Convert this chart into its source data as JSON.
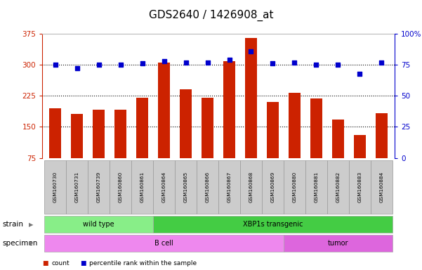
{
  "title": "GDS2640 / 1426908_at",
  "samples": [
    "GSM160730",
    "GSM160731",
    "GSM160739",
    "GSM160860",
    "GSM160861",
    "GSM160864",
    "GSM160865",
    "GSM160866",
    "GSM160867",
    "GSM160868",
    "GSM160869",
    "GSM160880",
    "GSM160881",
    "GSM160882",
    "GSM160883",
    "GSM160884"
  ],
  "counts": [
    195,
    182,
    192,
    192,
    220,
    305,
    240,
    220,
    308,
    365,
    210,
    233,
    218,
    168,
    130,
    183
  ],
  "percentiles": [
    75,
    72,
    75,
    75,
    76,
    78,
    77,
    77,
    79,
    86,
    76,
    77,
    75,
    75,
    68,
    77
  ],
  "ylim_left": [
    75,
    375
  ],
  "ylim_right": [
    0,
    100
  ],
  "yticks_left": [
    75,
    150,
    225,
    300,
    375
  ],
  "yticks_right": [
    0,
    25,
    50,
    75,
    100
  ],
  "bar_color": "#cc2200",
  "dot_color": "#0000cc",
  "grid_color": "#000000",
  "strain_groups": [
    {
      "label": "wild type",
      "start": 0,
      "end": 4,
      "color": "#88ee88"
    },
    {
      "label": "XBP1s transgenic",
      "start": 5,
      "end": 15,
      "color": "#44cc44"
    }
  ],
  "specimen_groups": [
    {
      "label": "B cell",
      "start": 0,
      "end": 10,
      "color": "#ee88ee"
    },
    {
      "label": "tumor",
      "start": 11,
      "end": 15,
      "color": "#dd66dd"
    }
  ],
  "tick_bg_color": "#cccccc",
  "strain_label": "strain",
  "specimen_label": "specimen",
  "legend_count": "count",
  "legend_pct": "percentile rank within the sample",
  "title_fontsize": 11,
  "axis_label_fontsize": 8,
  "gridlines": [
    150,
    225,
    300
  ],
  "bar_bottom": 75
}
